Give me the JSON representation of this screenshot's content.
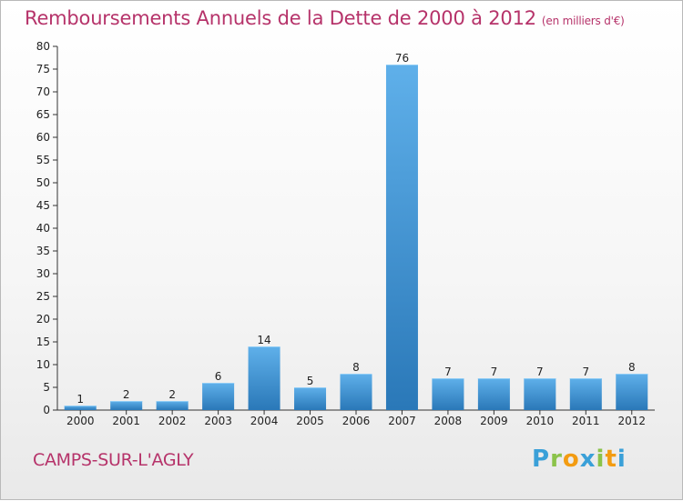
{
  "title": "Remboursements Annuels de la Dette de 2000 à 2012",
  "unit": "(en milliers d'€)",
  "town": "CAMPS-SUR-L'AGLY",
  "logo": {
    "text": "Proxiti",
    "letters": [
      {
        "ch": "P",
        "color": "#3aa0d8"
      },
      {
        "ch": "r",
        "color": "#8bc34a"
      },
      {
        "ch": "o",
        "color": "#f39c12"
      },
      {
        "ch": "x",
        "color": "#3aa0d8"
      },
      {
        "ch": "i",
        "color": "#8bc34a"
      },
      {
        "ch": "t",
        "color": "#f39c12"
      },
      {
        "ch": "i",
        "color": "#3aa0d8"
      }
    ]
  },
  "colors": {
    "accent": "#b6336a",
    "bar_top": "#5fb0ea",
    "bar_bottom": "#2a78b8"
  },
  "chart_data": {
    "type": "bar",
    "categories": [
      "2000",
      "2001",
      "2002",
      "2003",
      "2004",
      "2005",
      "2006",
      "2007",
      "2008",
      "2009",
      "2010",
      "2011",
      "2012"
    ],
    "values": [
      1,
      2,
      2,
      6,
      14,
      5,
      8,
      76,
      7,
      7,
      7,
      7,
      8
    ],
    "ylim": [
      0,
      80
    ],
    "yticks": [
      0,
      5,
      10,
      15,
      20,
      25,
      30,
      35,
      40,
      45,
      50,
      55,
      60,
      65,
      70,
      75,
      80
    ],
    "grid": false,
    "legend": "none"
  }
}
